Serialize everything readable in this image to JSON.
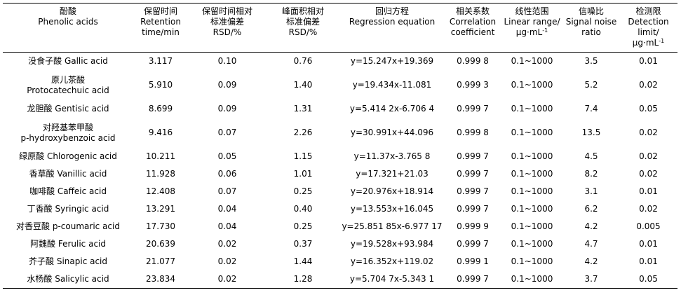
{
  "headers": [
    {
      "zh": "酚酸",
      "en": [
        "Phenolic acids"
      ]
    },
    {
      "zh": "保留时间",
      "en": [
        "Retention",
        "time/min"
      ]
    },
    {
      "zh": "保留时间相对",
      "en": [
        "标准偏差",
        "RSD/%"
      ]
    },
    {
      "zh": "峰面积相对",
      "en": [
        "标准偏差",
        "RSD/%"
      ]
    },
    {
      "zh": "回归方程",
      "en": [
        "Regression equation"
      ]
    },
    {
      "zh": "相关系数",
      "en": [
        "Correlation",
        "coefficient"
      ]
    },
    {
      "zh": "线性范围",
      "en": [
        "Linear range/",
        "μg·mL"
      ],
      "sup": "-1"
    },
    {
      "zh": "信噪比",
      "en": [
        "Signal noise",
        "ratio"
      ]
    },
    {
      "zh": "检测限",
      "en": [
        "Detection limit/",
        "μg·mL"
      ],
      "sup": "-1"
    }
  ],
  "rows": [
    {
      "name_zh": "没食子酸",
      "name_en": "Gallic acid",
      "split": false,
      "rt": "3.117",
      "rt_rsd": "0.10",
      "area_rsd": "0.76",
      "equation": "y=15.247x+19.369",
      "r": "0.999 8",
      "range": "0.1~1000",
      "sn": "3.5",
      "lod": "0.01"
    },
    {
      "name_zh": "原儿茶酸",
      "name_en": "Protocatechuic acid",
      "split": true,
      "rt": "5.910",
      "rt_rsd": "0.09",
      "area_rsd": "1.40",
      "equation": "y=19.434x-11.081",
      "r": "0.999 3",
      "range": "0.1~1000",
      "sn": "5.2",
      "lod": "0.02"
    },
    {
      "name_zh": "龙胆酸",
      "name_en": "Gentisic acid",
      "split": false,
      "rt": "8.699",
      "rt_rsd": "0.09",
      "area_rsd": "1.31",
      "equation": "y=5.414 2x-6.706 4",
      "r": "0.999 7",
      "range": "0.1~1000",
      "sn": "7.4",
      "lod": "0.05"
    },
    {
      "name_zh": "对羟基苯甲酸",
      "name_en": "p-hydroxybenzoic acid",
      "split": true,
      "rt": "9.416",
      "rt_rsd": "0.07",
      "area_rsd": "2.26",
      "equation": "y=30.991x+44.096",
      "r": "0.999 8",
      "range": "0.1~1000",
      "sn": "13.5",
      "lod": "0.02"
    },
    {
      "name_zh": "绿原酸",
      "name_en": "Chlorogenic acid",
      "split": false,
      "rt": "10.211",
      "rt_rsd": "0.05",
      "area_rsd": "1.15",
      "equation": "y=11.37x-3.765 8",
      "r": "0.999 7",
      "range": "0.1~1000",
      "sn": "4.5",
      "lod": "0.02"
    },
    {
      "name_zh": "香草酸",
      "name_en": "Vanillic acid",
      "split": false,
      "rt": "11.928",
      "rt_rsd": "0.06",
      "area_rsd": "1.01",
      "equation": "y=17.321+21.03",
      "r": "0.999 7",
      "range": "0.1~1000",
      "sn": "8.2",
      "lod": "0.02"
    },
    {
      "name_zh": "咖啡酸",
      "name_en": "Caffeic acid",
      "split": false,
      "rt": "12.408",
      "rt_rsd": "0.07",
      "area_rsd": "0.25",
      "equation": "y=20.976x+18.914",
      "r": "0.999 7",
      "range": "0.1~1000",
      "sn": "3.1",
      "lod": "0.01"
    },
    {
      "name_zh": "丁香酸",
      "name_en": "Syringic acid",
      "split": false,
      "rt": "13.291",
      "rt_rsd": "0.04",
      "area_rsd": "0.40",
      "equation": "y=13.553x+16.045",
      "r": "0.999 7",
      "range": "0.1~1000",
      "sn": "6.2",
      "lod": "0.02"
    },
    {
      "name_zh": "对香豆酸",
      "name_en": "p-coumaric acid",
      "split": false,
      "rt": "17.730",
      "rt_rsd": "0.04",
      "area_rsd": "0.25",
      "equation": "y=25.851 85x-6.977 17",
      "r": "0.999 9",
      "range": "0.1~1000",
      "sn": "4.2",
      "lod": "0.005"
    },
    {
      "name_zh": "阿魏酸",
      "name_en": "Ferulic acid",
      "split": false,
      "rt": "20.639",
      "rt_rsd": "0.02",
      "area_rsd": "0.37",
      "equation": "y=19.528x+93.984",
      "r": "0.999 7",
      "range": "0.1~1000",
      "sn": "4.7",
      "lod": "0.01"
    },
    {
      "name_zh": "芥子酸",
      "name_en": "Sinapic acid",
      "split": false,
      "rt": "21.077",
      "rt_rsd": "0.02",
      "area_rsd": "1.44",
      "equation": "y=16.352x+119.02",
      "r": "0.999 1",
      "range": "0.1~1000",
      "sn": "4.2",
      "lod": "0.01"
    },
    {
      "name_zh": "水杨酸",
      "name_en": "Salicylic acid",
      "split": false,
      "rt": "23.834",
      "rt_rsd": "0.02",
      "area_rsd": "1.28",
      "equation": "y=5.704 7x-5.343 1",
      "r": "0.999 7",
      "range": "0.1~1000",
      "sn": "3.7",
      "lod": "0.05"
    }
  ]
}
